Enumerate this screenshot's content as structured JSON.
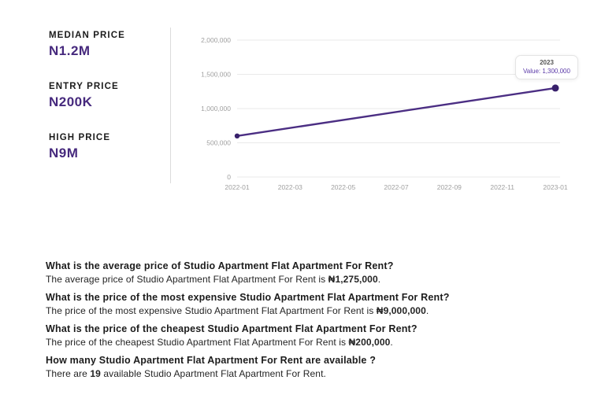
{
  "colors": {
    "accent": "#46297d",
    "line": "#4b2e83",
    "dot": "#38206b",
    "tooltip_value": "#5b3aa8",
    "axis_label": "#a0a0a0",
    "grid": "#e9e9e9",
    "divider": "#dcdcdc",
    "text": "#1c1c1c"
  },
  "stats": [
    {
      "label": "MEDIAN PRICE",
      "value": "N1.2M"
    },
    {
      "label": "ENTRY PRICE",
      "value": "N200K"
    },
    {
      "label": "HIGH PRICE",
      "value": "N9M"
    }
  ],
  "chart_data": {
    "type": "line",
    "title": "",
    "x": [
      "2022-01",
      "2023-01"
    ],
    "series": [
      {
        "name": "Price",
        "values": [
          600000,
          1300000
        ]
      }
    ],
    "xtick_labels": [
      "2022-01",
      "2022-03",
      "2022-05",
      "2022-07",
      "2022-09",
      "2022-11",
      "2023-01"
    ],
    "ytick_values": [
      0,
      500000,
      1000000,
      1500000,
      2000000
    ],
    "ytick_labels": [
      "0",
      "500,000",
      "1,000,000",
      "1,500,000",
      "2,000,000"
    ],
    "ylim": [
      0,
      2000000
    ],
    "grid": true,
    "legend": false,
    "tooltip": {
      "title": "2023",
      "value_label": "Value: 1,300,000"
    }
  },
  "qa": [
    {
      "q": "What is the average price of Studio Apartment Flat Apartment For Rent?",
      "a_pre": "The average price of Studio Apartment Flat Apartment For Rent is ",
      "a_bold": "₦1,275,000",
      "a_post": "."
    },
    {
      "q": "What is the price of the most expensive Studio Apartment Flat Apartment For Rent?",
      "a_pre": "The price of the most expensive Studio Apartment Flat Apartment For Rent is ",
      "a_bold": "₦9,000,000",
      "a_post": "."
    },
    {
      "q": "What is the price of the cheapest Studio Apartment Flat Apartment For Rent?",
      "a_pre": "The price of the cheapest Studio Apartment Flat Apartment For Rent is ",
      "a_bold": "₦200,000",
      "a_post": "."
    },
    {
      "q": "How many Studio Apartment Flat Apartment For Rent are available ?",
      "a_pre": "There are ",
      "a_bold": "19",
      "a_post": " available Studio Apartment Flat Apartment For Rent."
    }
  ]
}
